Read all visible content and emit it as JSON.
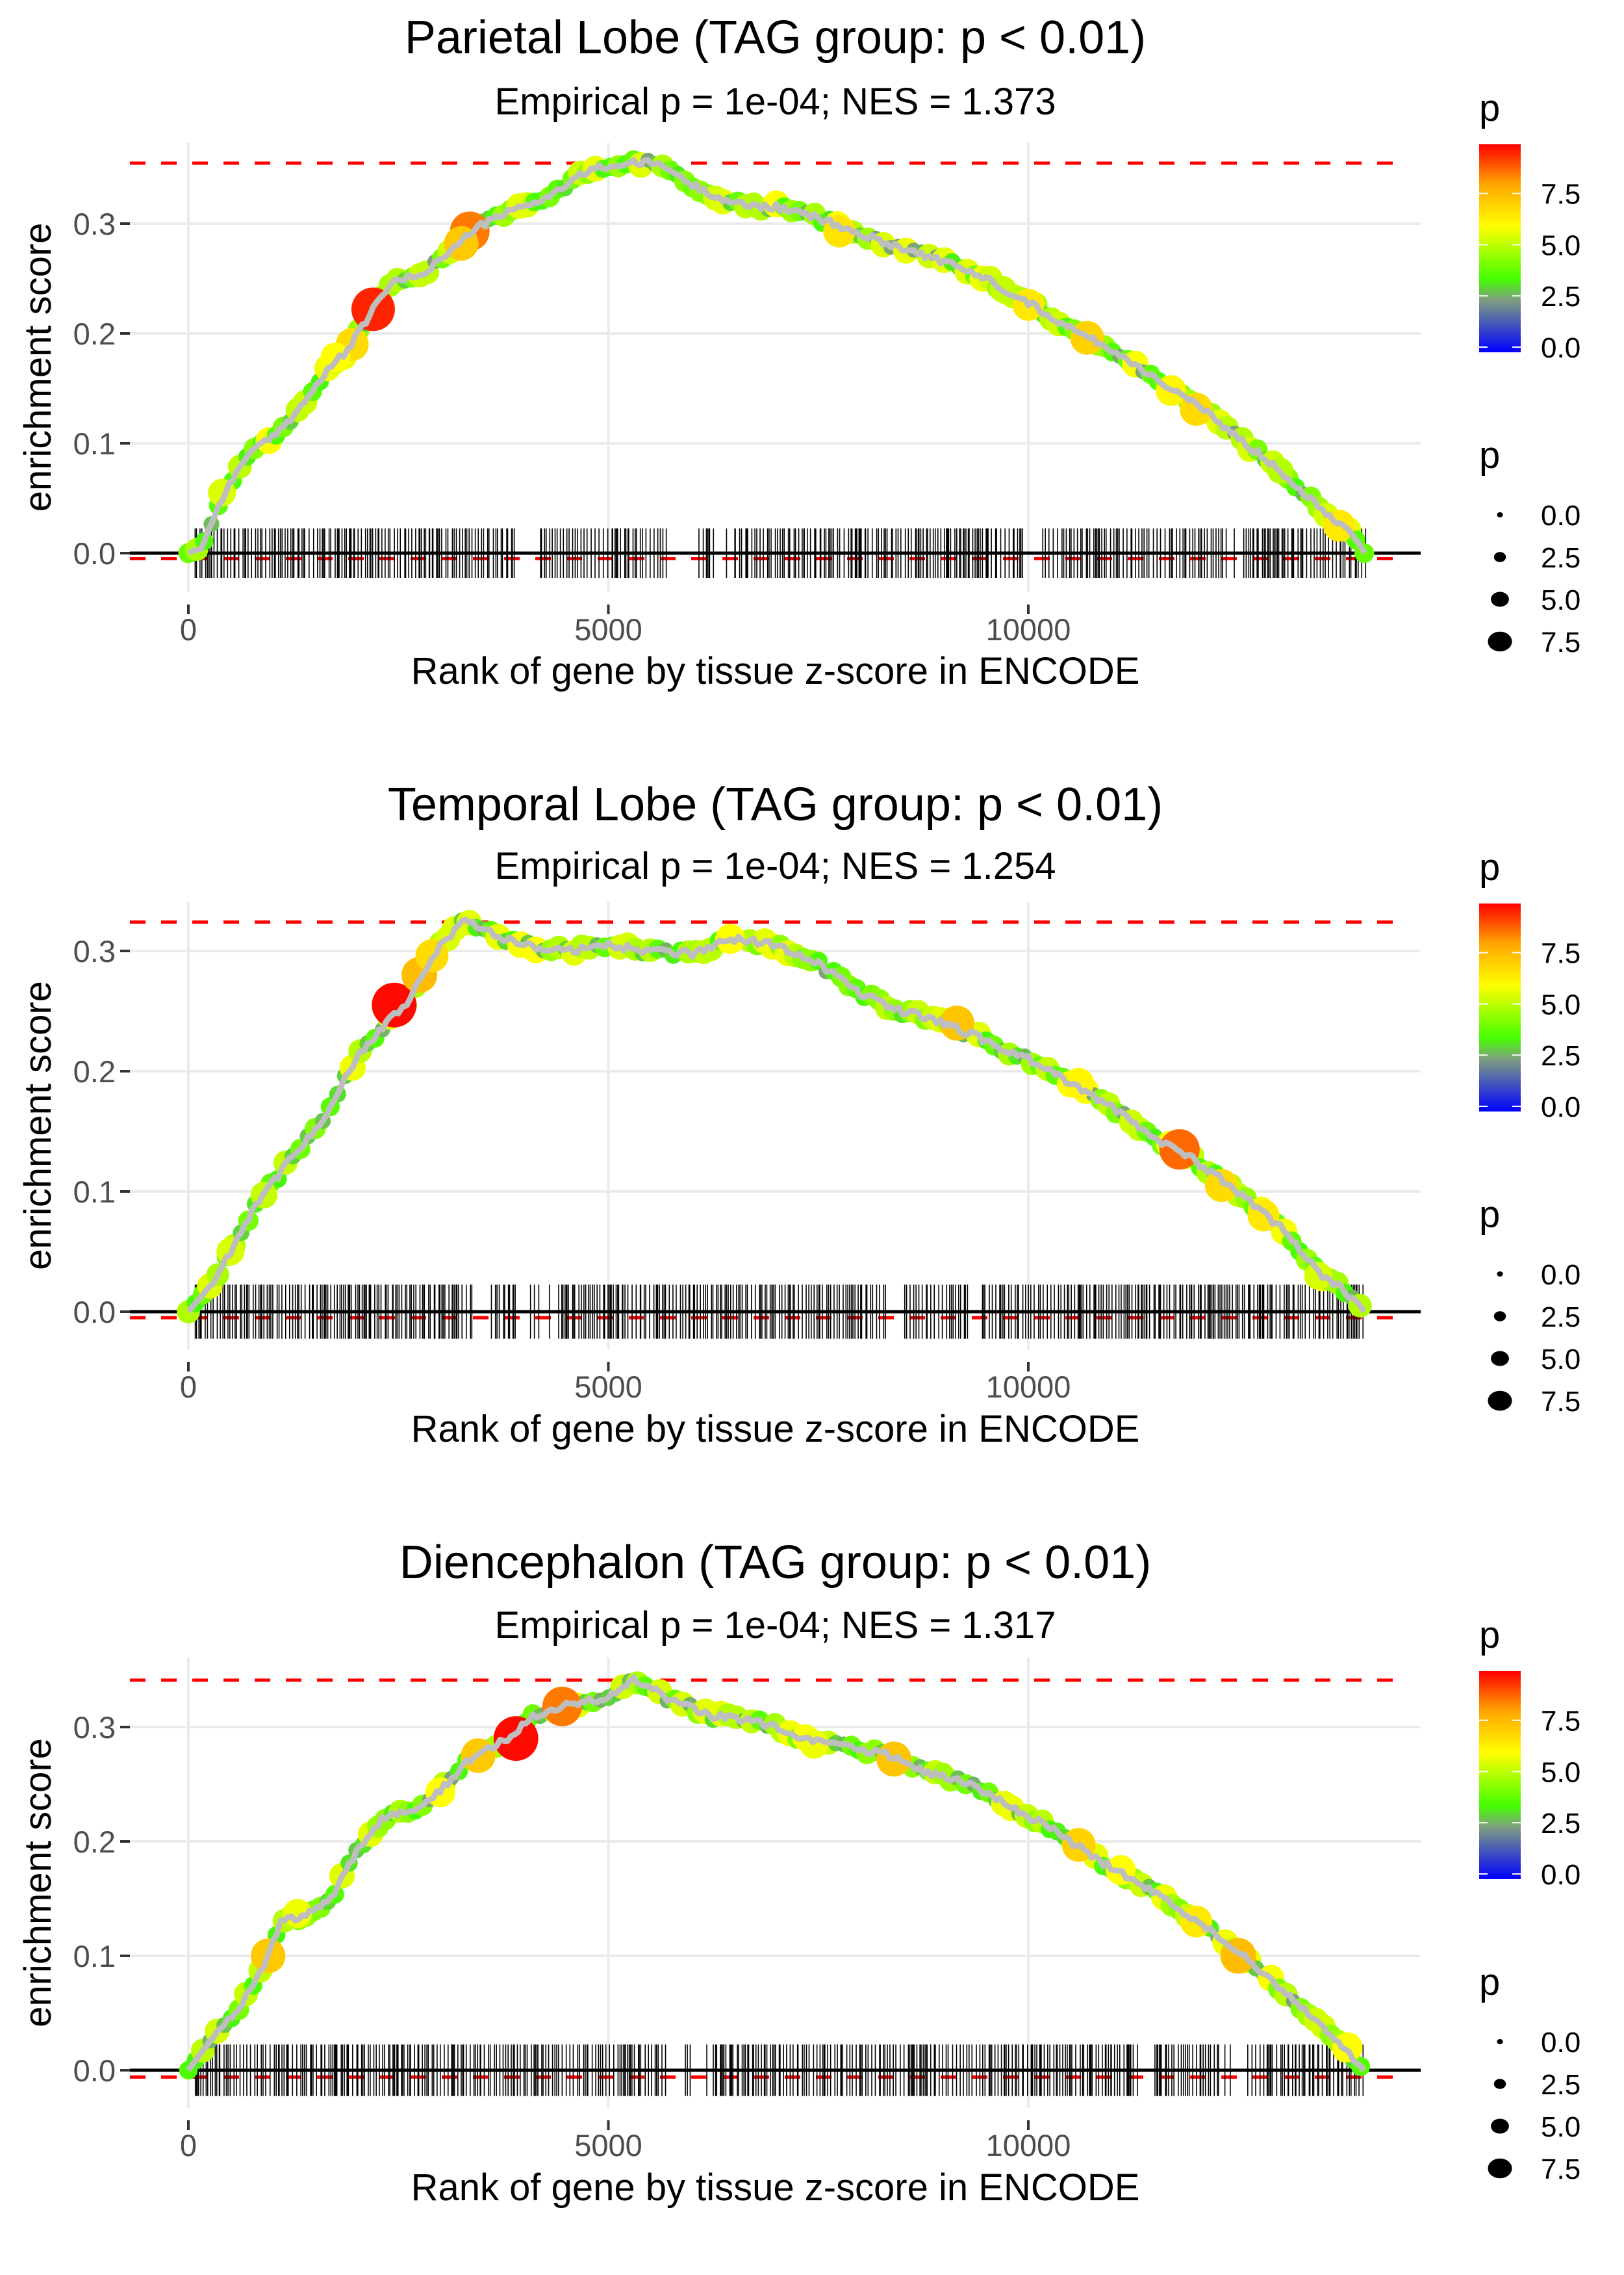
{
  "chart_data": [
    {
      "type": "line",
      "title": "Parietal Lobe (TAG group: p < 0.01)",
      "subtitle": "Empirical p = 1e-04; NES = 1.373",
      "xlabel": "Rank of gene by tissue z-score in ENCODE",
      "ylabel": "enrichment score",
      "xlim": [
        -700,
        14700
      ],
      "ylim": [
        -0.04,
        0.375
      ],
      "xticks": [
        0,
        5000,
        10000
      ],
      "xtick_labels": [
        "0",
        "5000",
        "10000"
      ],
      "yticks": [
        0.0,
        0.1,
        0.2,
        0.3
      ],
      "ytick_labels": [
        "0.0",
        "0.1",
        "0.2",
        "0.3"
      ],
      "grid": true,
      "max_es_line": 0.355,
      "min_es_line": -0.005,
      "baseline": 0,
      "rug_extent": [
        0,
        13970
      ],
      "rug_gaps": [
        [
          3900,
          4150
        ],
        [
          5700,
          6100
        ],
        [
          6300,
          6500
        ],
        [
          9950,
          10150
        ],
        [
          12350,
          12550
        ]
      ],
      "series": [
        {
          "name": "running enrichment score",
          "x": [
            0,
            150,
            400,
            700,
            1000,
            1300,
            1700,
            1900,
            2200,
            2400,
            2800,
            3200,
            3400,
            3800,
            4300,
            4800,
            5300,
            5600,
            6000,
            6500,
            7000,
            7500,
            8000,
            8500,
            9000,
            9500,
            10000,
            10500,
            11000,
            11500,
            12000,
            12500,
            13000,
            13500,
            13900,
            14000
          ],
          "y": [
            0,
            0.005,
            0.05,
            0.09,
            0.105,
            0.13,
            0.17,
            0.185,
            0.222,
            0.245,
            0.255,
            0.28,
            0.295,
            0.31,
            0.325,
            0.35,
            0.355,
            0.355,
            0.335,
            0.318,
            0.315,
            0.305,
            0.29,
            0.278,
            0.265,
            0.25,
            0.228,
            0.205,
            0.185,
            0.16,
            0.135,
            0.105,
            0.075,
            0.04,
            0.015,
            0
          ]
        }
      ],
      "highlight_points": [
        {
          "x": 2200,
          "y": 0.222,
          "p": 9.5
        },
        {
          "x": 3350,
          "y": 0.293,
          "p": 8.5
        },
        {
          "x": 3250,
          "y": 0.282,
          "p": 7.2
        },
        {
          "x": 1950,
          "y": 0.19,
          "p": 6.8
        },
        {
          "x": 1750,
          "y": 0.178,
          "p": 6.0
        },
        {
          "x": 400,
          "y": 0.055,
          "p": 5.5
        },
        {
          "x": 7750,
          "y": 0.293,
          "p": 6.6
        },
        {
          "x": 10000,
          "y": 0.226,
          "p": 6.5
        },
        {
          "x": 10700,
          "y": 0.196,
          "p": 7.0
        },
        {
          "x": 11700,
          "y": 0.148,
          "p": 6.2
        },
        {
          "x": 12000,
          "y": 0.131,
          "p": 6.8
        },
        {
          "x": 13700,
          "y": 0.025,
          "p": 6.5
        },
        {
          "x": 9700,
          "y": 0.24,
          "p": 5.2
        },
        {
          "x": 13000,
          "y": 0.075,
          "p": 5.0
        }
      ]
    },
    {
      "type": "line",
      "title": "Temporal Lobe (TAG group: p < 0.01)",
      "subtitle": "Empirical p = 1e-04; NES = 1.254",
      "xlabel": "Rank of gene by tissue z-score in ENCODE",
      "ylabel": "enrichment score",
      "xlim": [
        -700,
        14700
      ],
      "ylim": [
        -0.04,
        0.34
      ],
      "xticks": [
        0,
        5000,
        10000
      ],
      "xtick_labels": [
        "0",
        "5000",
        "10000"
      ],
      "yticks": [
        0.0,
        0.1,
        0.2,
        0.3
      ],
      "ytick_labels": [
        "0.0",
        "0.1",
        "0.2",
        "0.3"
      ],
      "grid": true,
      "max_es_line": 0.324,
      "min_es_line": -0.005,
      "baseline": 0,
      "rug_extent": [
        0,
        13970
      ],
      "rug_gaps": [
        [
          3400,
          3600
        ],
        [
          3900,
          4100
        ],
        [
          4200,
          4400
        ],
        [
          8300,
          8500
        ],
        [
          9300,
          9450
        ]
      ],
      "series": [
        {
          "name": "running enrichment score",
          "x": [
            0,
            300,
            500,
            800,
            1200,
            1600,
            2000,
            2400,
            2600,
            2800,
            3000,
            3300,
            3600,
            4000,
            4500,
            5000,
            5500,
            6000,
            6500,
            7000,
            7500,
            8000,
            8500,
            9000,
            9500,
            10000,
            10500,
            11000,
            11500,
            12000,
            12500,
            13000,
            13500,
            13900,
            14000
          ],
          "y": [
            0,
            0.025,
            0.05,
            0.09,
            0.125,
            0.16,
            0.21,
            0.245,
            0.255,
            0.28,
            0.305,
            0.325,
            0.315,
            0.305,
            0.3,
            0.305,
            0.3,
            0.298,
            0.31,
            0.305,
            0.29,
            0.265,
            0.25,
            0.24,
            0.225,
            0.21,
            0.19,
            0.17,
            0.145,
            0.125,
            0.1,
            0.07,
            0.03,
            0.01,
            0
          ]
        }
      ],
      "highlight_points": [
        {
          "x": 2450,
          "y": 0.255,
          "p": 9.8
        },
        {
          "x": 2750,
          "y": 0.28,
          "p": 7.5
        },
        {
          "x": 2900,
          "y": 0.296,
          "p": 6.8
        },
        {
          "x": 11800,
          "y": 0.135,
          "p": 8.7
        },
        {
          "x": 9150,
          "y": 0.24,
          "p": 7.3
        },
        {
          "x": 6450,
          "y": 0.31,
          "p": 6.0
        },
        {
          "x": 12300,
          "y": 0.105,
          "p": 6.8
        },
        {
          "x": 12800,
          "y": 0.08,
          "p": 6.5
        },
        {
          "x": 10600,
          "y": 0.19,
          "p": 6.2
        },
        {
          "x": 13450,
          "y": 0.03,
          "p": 5.5
        },
        {
          "x": 500,
          "y": 0.05,
          "p": 5.5
        },
        {
          "x": 900,
          "y": 0.097,
          "p": 5.2
        }
      ]
    },
    {
      "type": "line",
      "title": "Diencephalon (TAG group: p < 0.01)",
      "subtitle": "Empirical p = 1e-04; NES = 1.317",
      "xlabel": "Rank of gene by tissue z-score in ENCODE",
      "ylabel": "enrichment score",
      "xlim": [
        -700,
        14700
      ],
      "ylim": [
        -0.04,
        0.355
      ],
      "xticks": [
        0,
        5000,
        10000
      ],
      "xtick_labels": [
        "0",
        "5000",
        "10000"
      ],
      "yticks": [
        0.0,
        0.1,
        0.2,
        0.3
      ],
      "ytick_labels": [
        "0.0",
        "0.1",
        "0.2",
        "0.3"
      ],
      "grid": true,
      "max_es_line": 0.341,
      "min_es_line": -0.006,
      "baseline": 0,
      "rug_extent": [
        0,
        13970
      ],
      "rug_gaps": [
        [
          5700,
          5900
        ],
        [
          6000,
          6200
        ],
        [
          11300,
          11500
        ],
        [
          12300,
          12600
        ]
      ],
      "series": [
        {
          "name": "running enrichment score",
          "x": [
            0,
            300,
            600,
            900,
            1100,
            1400,
            1700,
            2000,
            2300,
            2700,
            3000,
            3400,
            3800,
            4100,
            4500,
            5000,
            5300,
            5700,
            6200,
            6800,
            7300,
            7800,
            8400,
            8800,
            9300,
            9800,
            10300,
            10800,
            11300,
            11800,
            12300,
            12800,
            13200,
            13600,
            14000
          ],
          "y": [
            0,
            0.03,
            0.055,
            0.09,
            0.13,
            0.135,
            0.15,
            0.19,
            0.22,
            0.23,
            0.245,
            0.275,
            0.29,
            0.31,
            0.32,
            0.325,
            0.342,
            0.325,
            0.31,
            0.305,
            0.29,
            0.283,
            0.275,
            0.26,
            0.25,
            0.23,
            0.21,
            0.185,
            0.165,
            0.14,
            0.115,
            0.085,
            0.06,
            0.03,
            0
          ]
        }
      ],
      "highlight_points": [
        {
          "x": 3900,
          "y": 0.29,
          "p": 9.8
        },
        {
          "x": 4450,
          "y": 0.318,
          "p": 8.5
        },
        {
          "x": 3450,
          "y": 0.275,
          "p": 7.2
        },
        {
          "x": 950,
          "y": 0.1,
          "p": 7.2
        },
        {
          "x": 1300,
          "y": 0.137,
          "p": 5.8
        },
        {
          "x": 3000,
          "y": 0.243,
          "p": 6.0
        },
        {
          "x": 8400,
          "y": 0.272,
          "p": 7.3
        },
        {
          "x": 10600,
          "y": 0.197,
          "p": 7.0
        },
        {
          "x": 11100,
          "y": 0.175,
          "p": 6.0
        },
        {
          "x": 12500,
          "y": 0.1,
          "p": 7.5
        },
        {
          "x": 12000,
          "y": 0.13,
          "p": 6.5
        },
        {
          "x": 7450,
          "y": 0.285,
          "p": 5.8
        },
        {
          "x": 13800,
          "y": 0.02,
          "p": 6.0
        }
      ]
    }
  ],
  "legends": {
    "color": {
      "title": "p",
      "labels": [
        "7.5",
        "5.0",
        "2.5",
        "0.0"
      ],
      "values": [
        7.5,
        5.0,
        2.5,
        0.0
      ],
      "range": [
        0,
        9.9
      ],
      "stops": [
        {
          "value": 0.0,
          "color": "#0000ff"
        },
        {
          "value": 2.5,
          "color": "#7f9f7f"
        },
        {
          "value": 3.5,
          "color": "#44ff00"
        },
        {
          "value": 6.0,
          "color": "#ffff00"
        },
        {
          "value": 8.0,
          "color": "#ffa500"
        },
        {
          "value": 9.9,
          "color": "#ff0000"
        }
      ]
    },
    "size": {
      "title": "p",
      "labels": [
        "0.0",
        "2.5",
        "5.0",
        "7.5"
      ],
      "values": [
        0.0,
        2.5,
        5.0,
        7.5
      ]
    }
  },
  "colors": {
    "max_line": "#ff0000",
    "curve_line": "#bebebe",
    "rug": "#000000",
    "grid": "#ebebeb"
  }
}
